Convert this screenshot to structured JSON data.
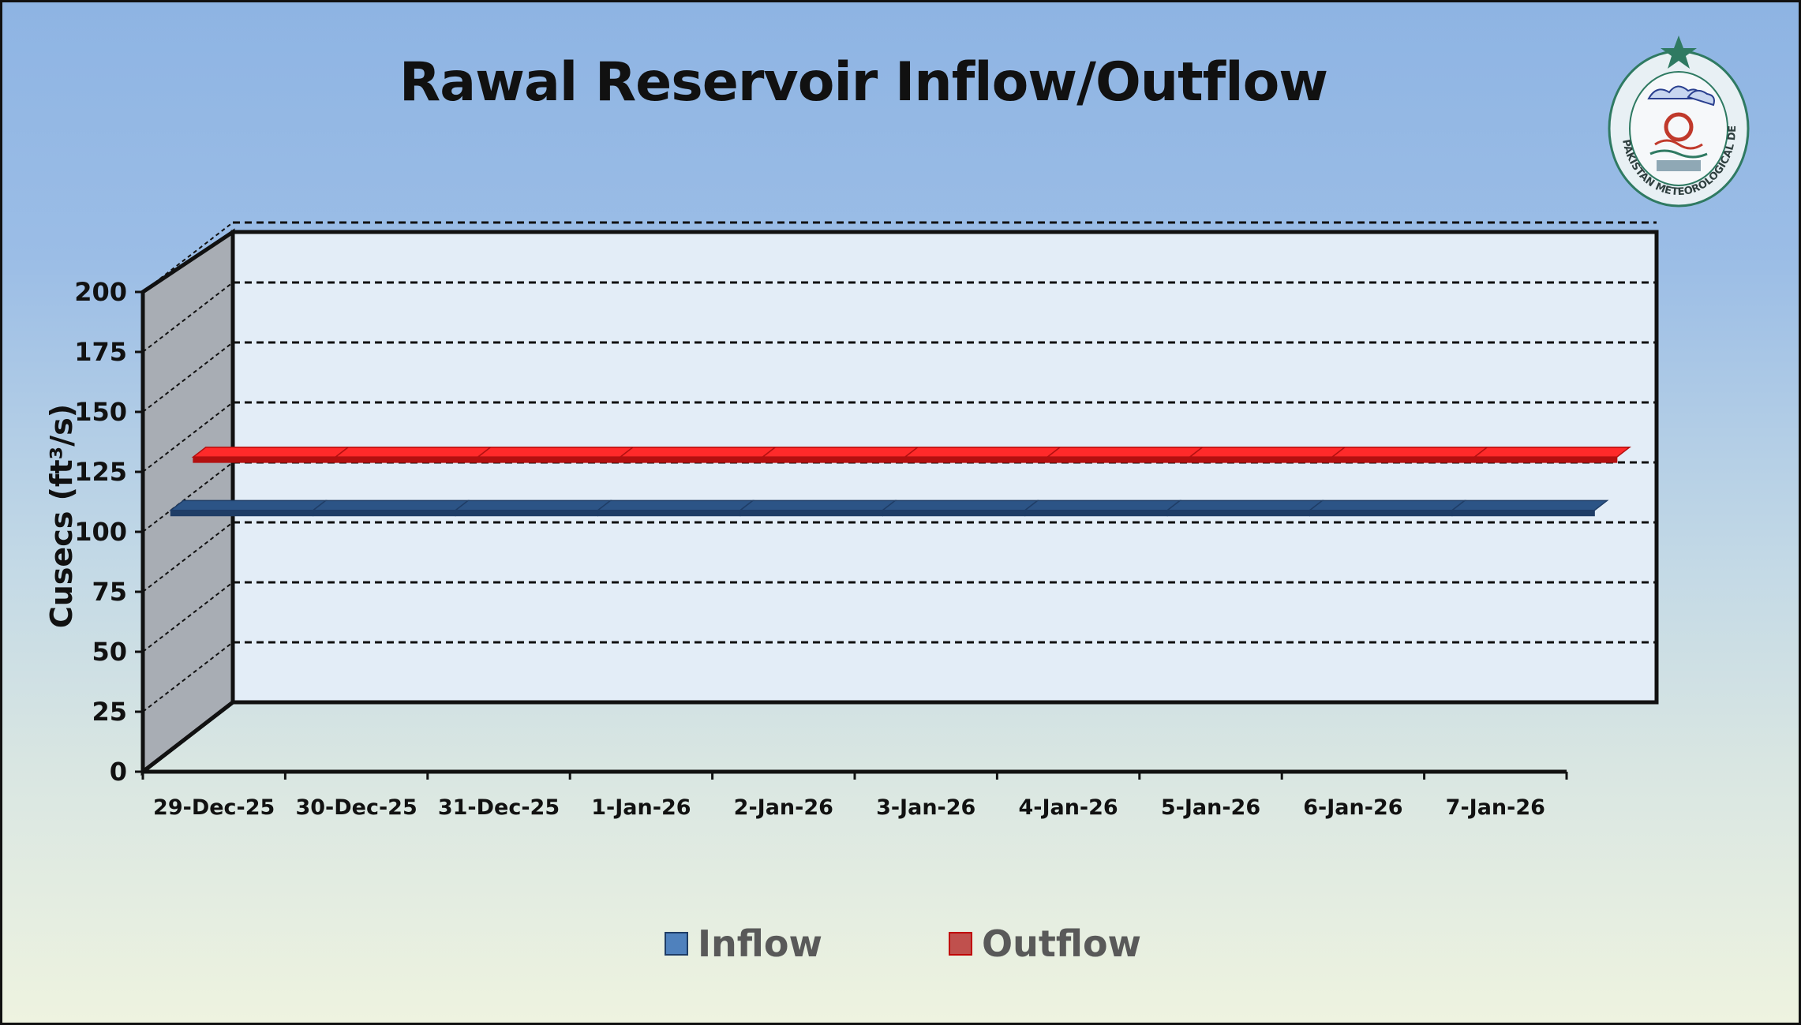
{
  "chart_data": {
    "type": "line",
    "title": "Rawal Reservoir Inflow/Outflow",
    "ylabel": "Cusecs (ft³/s)",
    "xlabel": "",
    "ylim": [
      0,
      200
    ],
    "yticks": [
      "0",
      "25",
      "50",
      "75",
      "100",
      "125",
      "150",
      "175",
      "200"
    ],
    "categories": [
      "29-Dec-25",
      "30-Dec-25",
      "31-Dec-25",
      "1-Jan-26",
      "2-Jan-26",
      "3-Jan-26",
      "4-Jan-26",
      "5-Jan-26",
      "6-Jan-26",
      "7-Jan-26"
    ],
    "series": [
      {
        "name": "Inflow",
        "color": "#4f81bd",
        "values": [
          100,
          100,
          100,
          100,
          100,
          100,
          100,
          100,
          100,
          100
        ]
      },
      {
        "name": "Outflow",
        "color": "#ff2020",
        "values": [
          115,
          115,
          115,
          115,
          115,
          115,
          115,
          115,
          115,
          115
        ]
      }
    ],
    "grid": true,
    "style": "3d-line",
    "legend_position": "bottom"
  },
  "logo": {
    "name": "pakistan-meteorological-department-logo",
    "text": "PAKISTAN METEOROLOGICAL DEPARTMENT"
  }
}
